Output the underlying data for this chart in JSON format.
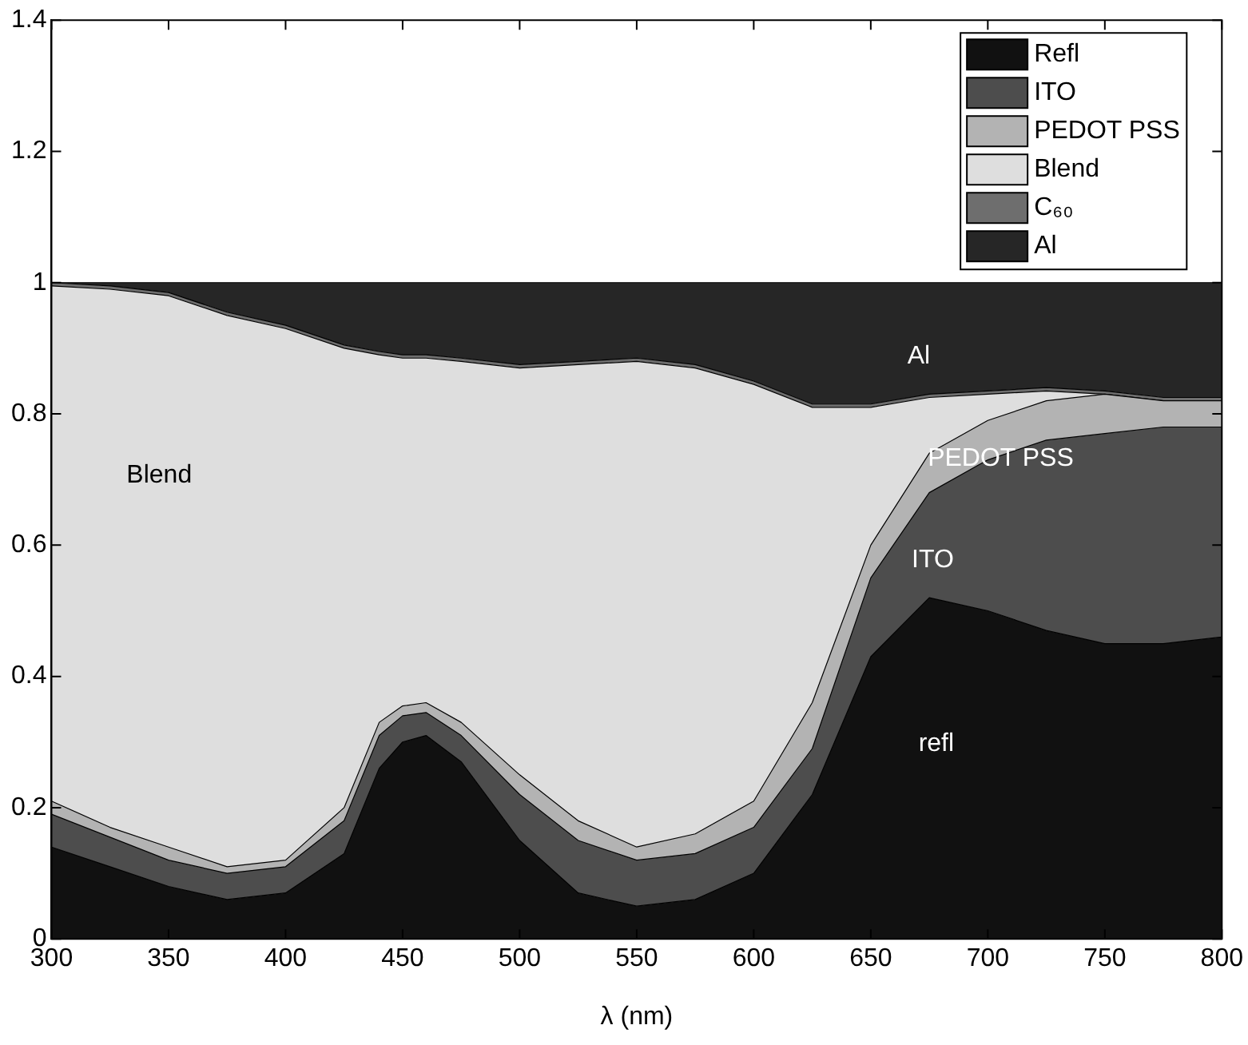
{
  "chart_data": {
    "type": "area",
    "stacked": true,
    "xlabel": "λ (nm)",
    "x": [
      300,
      325,
      350,
      375,
      400,
      425,
      440,
      450,
      460,
      475,
      500,
      525,
      550,
      575,
      600,
      625,
      650,
      675,
      700,
      725,
      750,
      775,
      800
    ],
    "series": [
      {
        "name": "Refl",
        "color": "#111111",
        "values": [
          0.14,
          0.11,
          0.08,
          0.06,
          0.07,
          0.13,
          0.26,
          0.3,
          0.31,
          0.27,
          0.15,
          0.07,
          0.05,
          0.06,
          0.1,
          0.22,
          0.43,
          0.52,
          0.5,
          0.47,
          0.45,
          0.45,
          0.46
        ]
      },
      {
        "name": "ITO",
        "color": "#4d4d4d",
        "values": [
          0.05,
          0.045,
          0.04,
          0.04,
          0.04,
          0.05,
          0.05,
          0.04,
          0.035,
          0.04,
          0.07,
          0.08,
          0.07,
          0.07,
          0.07,
          0.07,
          0.12,
          0.16,
          0.23,
          0.29,
          0.32,
          0.33,
          0.32
        ]
      },
      {
        "name": "PEDOT PSS",
        "color": "#b3b3b3",
        "values": [
          0.02,
          0.015,
          0.02,
          0.01,
          0.01,
          0.02,
          0.02,
          0.015,
          0.015,
          0.02,
          0.03,
          0.03,
          0.02,
          0.03,
          0.04,
          0.07,
          0.05,
          0.06,
          0.06,
          0.06,
          0.06,
          0.04,
          0.04
        ]
      },
      {
        "name": "Blend",
        "color": "#dedede",
        "values": [
          0.785,
          0.82,
          0.84,
          0.84,
          0.81,
          0.7,
          0.56,
          0.53,
          0.525,
          0.55,
          0.62,
          0.695,
          0.74,
          0.71,
          0.635,
          0.45,
          0.21,
          0.085,
          0.04,
          0.015,
          0,
          0,
          0
        ]
      },
      {
        "name": "C₆₀",
        "color": "#6e6e6e",
        "values": [
          0.005,
          0.005,
          0.005,
          0.005,
          0.005,
          0.005,
          0.005,
          0.005,
          0.005,
          0.005,
          0.005,
          0.005,
          0.005,
          0.005,
          0.005,
          0.005,
          0.005,
          0.005,
          0.005,
          0.005,
          0.005,
          0.005,
          0.005
        ]
      },
      {
        "name": "Al",
        "color": "#262626",
        "values": [
          0,
          0.005,
          0.015,
          0.045,
          0.065,
          0.095,
          0.105,
          0.11,
          0.11,
          0.115,
          0.125,
          0.12,
          0.115,
          0.125,
          0.15,
          0.185,
          0.185,
          0.17,
          0.165,
          0.16,
          0.165,
          0.175,
          0.175
        ]
      }
    ],
    "xlim": [
      300,
      800
    ],
    "xticks": [
      300,
      350,
      400,
      450,
      500,
      550,
      600,
      650,
      700,
      750,
      800
    ],
    "ylim": [
      0,
      1.4
    ],
    "yticks": [
      0,
      0.2,
      0.4,
      0.6,
      0.8,
      1,
      1.2,
      1.4
    ],
    "grid": false,
    "legend": "top right",
    "annotations": [
      "Blend",
      "Al",
      "PEDOT PSS",
      "ITO",
      "refl"
    ]
  }
}
